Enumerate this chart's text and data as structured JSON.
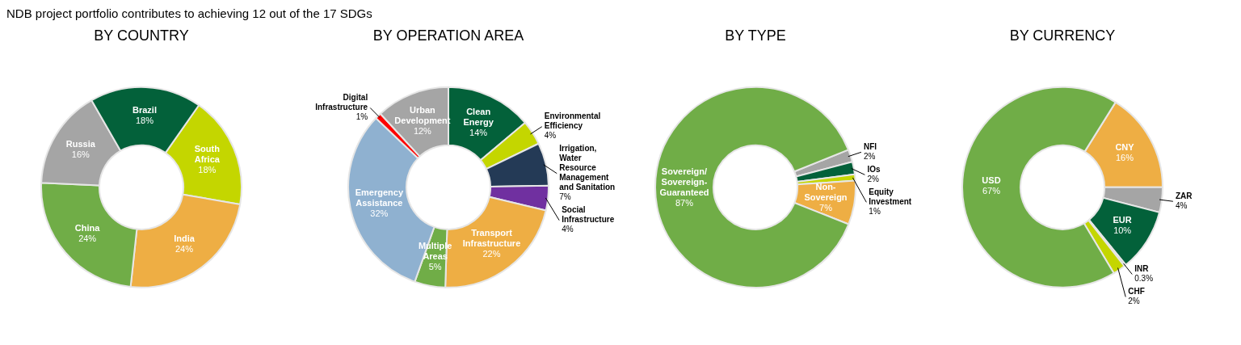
{
  "chart_data": [
    {
      "type": "donut",
      "title": "BY COUNTRY",
      "annotations": [
        "NDB project portfolio contributes to achieving 12 out of the 17 SDGs"
      ],
      "categories": [
        "South Africa",
        "India",
        "China",
        "Russia",
        "Brazil"
      ],
      "values": [
        18,
        24,
        24,
        16,
        18
      ],
      "value_labels": [
        "18%",
        "24%",
        "24%",
        "16%",
        "18%"
      ],
      "colors": [
        "#c4d600",
        "#eeae44",
        "#70ad47",
        "#a5a5a5",
        "#03613a"
      ]
    },
    {
      "type": "donut",
      "title": "BY OPERATION AREA",
      "categories": [
        "Clean Energy",
        "Environmental Efficiency",
        "Irrigation, Water Resource Management and Sanitation",
        "Social Infrastructure",
        "Transport Infrastructure",
        "Multiple Areas",
        "Emergency Assistance",
        "Digital Infrastructure",
        "Urban Development"
      ],
      "values": [
        14,
        4,
        7,
        4,
        22,
        5,
        32,
        1,
        12
      ],
      "value_labels": [
        "14%",
        "4%",
        "7%",
        "4%",
        "22%",
        "5%",
        "32%",
        "1%",
        "12%"
      ],
      "colors": [
        "#03613a",
        "#c4d600",
        "#243a56",
        "#7030a0",
        "#eeae44",
        "#70ad47",
        "#8fb1d0",
        "#ff0000",
        "#a5a5a5"
      ]
    },
    {
      "type": "donut",
      "title": "BY TYPE",
      "categories": [
        "NFI",
        "IOs",
        "Equity Investment",
        "Non-Sovereign",
        "Sovereign/Sovereign-Guaranteed"
      ],
      "values": [
        2,
        2,
        1,
        7,
        87
      ],
      "value_labels": [
        "2%",
        "2%",
        "1%",
        "7%",
        "87%"
      ],
      "colors": [
        "#a5a5a5",
        "#03613a",
        "#c4d600",
        "#eeae44",
        "#70ad47"
      ]
    },
    {
      "type": "donut",
      "title": "BY CURRENCY",
      "categories": [
        "CNY",
        "ZAR",
        "EUR",
        "INR",
        "CHF",
        "USD"
      ],
      "values": [
        16,
        4,
        10,
        0.3,
        2,
        67
      ],
      "value_labels": [
        "16%",
        "4%",
        "10%",
        "0.3%",
        "2%",
        "67%"
      ],
      "colors": [
        "#eeae44",
        "#a5a5a5",
        "#03613a",
        "#8fb1d0",
        "#c4d600",
        "#70ad47"
      ]
    }
  ]
}
